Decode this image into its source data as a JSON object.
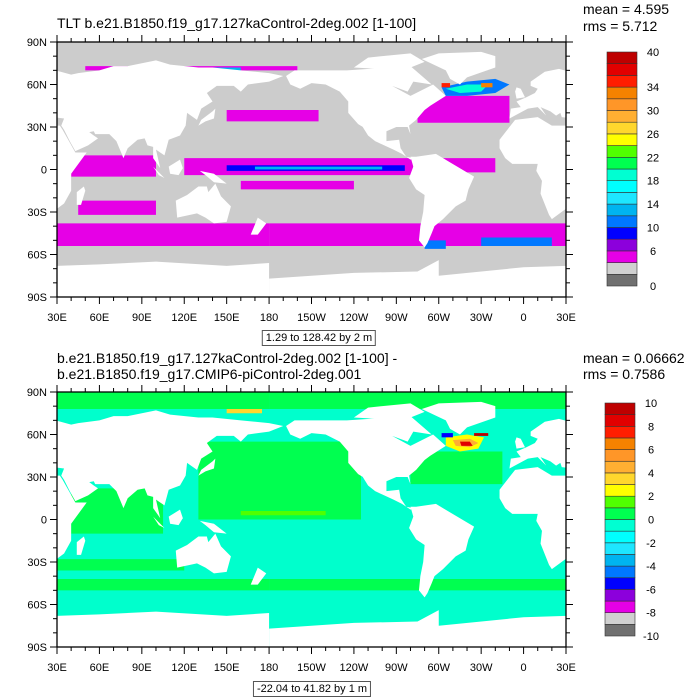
{
  "panels": [
    {
      "title": "TLT b.e21.B1850.f19_g17.127kaControl-2deg.002 [1-100]",
      "mean": "mean = 4.595",
      "rms": "rms = 5.712",
      "info": "1.29 to 128.42 by 2 m",
      "ocean_color": "#cccccc",
      "colorbar": {
        "range": [
          0,
          40
        ],
        "step": 2,
        "labels": [
          {
            "value": 0,
            "text": "0"
          },
          {
            "value": 6,
            "text": "6"
          },
          {
            "value": 10,
            "text": "10"
          },
          {
            "value": 14,
            "text": "14"
          },
          {
            "value": 18,
            "text": "18"
          },
          {
            "value": 22,
            "text": "22"
          },
          {
            "value": 26,
            "text": "26"
          },
          {
            "value": 30,
            "text": "30"
          },
          {
            "value": 34,
            "text": "34"
          },
          {
            "value": 40,
            "text": "40"
          }
        ]
      }
    },
    {
      "title": "b.e21.B1850.f19_g17.127kaControl-2deg.002 [1-100] - b.e21.B1850.f19_g17.CMIP6-piControl-2deg.001",
      "mean": "mean = 0.06662",
      "rms": "rms = 0.7586",
      "info": "-22.04 to 41.82 by 1 m",
      "ocean_color": "#00ffcc",
      "colorbar": {
        "range": [
          -10,
          10
        ],
        "step": 1,
        "labels": [
          {
            "value": -10,
            "text": "-10"
          },
          {
            "value": -8,
            "text": "-8"
          },
          {
            "value": -6,
            "text": "-6"
          },
          {
            "value": -4,
            "text": "-4"
          },
          {
            "value": -2,
            "text": "-2"
          },
          {
            "value": 0,
            "text": "0"
          },
          {
            "value": 2,
            "text": "2"
          },
          {
            "value": 4,
            "text": "4"
          },
          {
            "value": 6,
            "text": "6"
          },
          {
            "value": 8,
            "text": "8"
          },
          {
            "value": 10,
            "text": "10"
          }
        ]
      }
    }
  ],
  "colors": [
    "#707070",
    "#d0d0d0",
    "#e600e6",
    "#8c00dc",
    "#0000ff",
    "#0078ff",
    "#00b4f0",
    "#1ee6ff",
    "#00ffff",
    "#00ffd2",
    "#00ff50",
    "#50ff00",
    "#ffff00",
    "#ffd72d",
    "#ffaf32",
    "#ff9628",
    "#f58200",
    "#ff1e00",
    "#e10000",
    "#be0000"
  ],
  "axes": {
    "lon_labels": [
      "30E",
      "60E",
      "90E",
      "120E",
      "150E",
      "180",
      "150W",
      "120W",
      "90W",
      "60W",
      "30W",
      "0",
      "30E"
    ],
    "lat_labels": [
      "90N",
      "60N",
      "30N",
      "0",
      "30S",
      "60S",
      "90S"
    ]
  }
}
